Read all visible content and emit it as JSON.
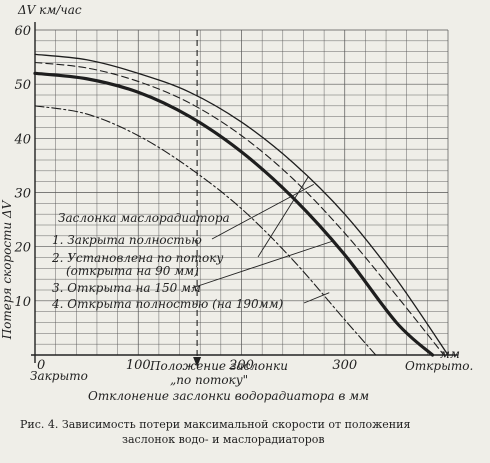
{
  "chart_data": {
    "type": "line",
    "title": "",
    "ylabel": "ΔV км/час",
    "ylabel_side": "Потеря скорости ΔV",
    "xlabel": "Отклонение заслонки водорадиатора в мм",
    "xunit": "мм",
    "xlim": [
      0,
      400
    ],
    "ylim": [
      0,
      60
    ],
    "xticks": [
      0,
      100,
      200,
      300
    ],
    "yticks": [
      10,
      20,
      30,
      40,
      50,
      60
    ],
    "x_end_labels": {
      "left": "Закрыто",
      "right": "Открыто."
    },
    "flow_position": {
      "x": 157,
      "label_line1": "Положение заслонки",
      "label_line2": "„по потоку\""
    },
    "legend_title": "Заслонка маслорадиатора",
    "series": [
      {
        "name": "1. Закрыта полностью",
        "style": "solid",
        "width": 1.3,
        "x": [
          0,
          50,
          100,
          150,
          200,
          250,
          300,
          350,
          400
        ],
        "y": [
          55.5,
          54.5,
          52,
          48.5,
          43,
          35.5,
          26,
          14,
          0
        ]
      },
      {
        "name": "2. Установлена по потоку",
        "name2": "(открыта на 90 мм)",
        "style": "dashed",
        "width": 1.1,
        "x": [
          0,
          50,
          100,
          150,
          200,
          250,
          300,
          350,
          396
        ],
        "y": [
          54,
          53,
          50.5,
          46.5,
          40.5,
          32.5,
          22.5,
          11,
          0
        ]
      },
      {
        "name": "3. Открыта на 150 мм",
        "style": "solid",
        "width": 3.2,
        "x": [
          0,
          50,
          100,
          150,
          200,
          250,
          300,
          350,
          385
        ],
        "y": [
          52,
          51,
          48.5,
          44,
          37.5,
          29,
          18.5,
          6,
          0
        ]
      },
      {
        "name": "4. Открыта полностью (на 190мм)",
        "style": "dashdot",
        "width": 1.1,
        "x": [
          0,
          50,
          100,
          150,
          200,
          250,
          300,
          330
        ],
        "y": [
          46,
          44.5,
          40.5,
          34.5,
          27,
          17.5,
          6.5,
          0
        ]
      }
    ],
    "grid": true
  },
  "caption": {
    "line1": "Рис. 4. Зависимость потери максимальной скорости от положения",
    "line2": "заслонок водо- и маслорадиаторов"
  }
}
